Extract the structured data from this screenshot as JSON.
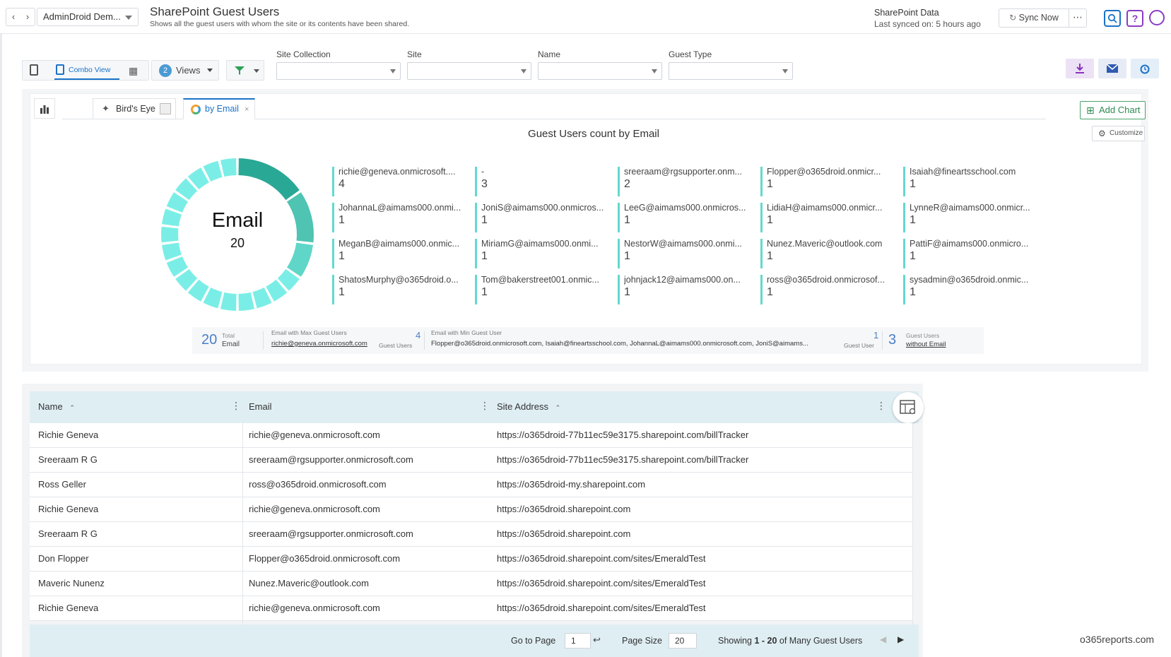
{
  "header": {
    "tenant": "AdminDroid Dem...",
    "title": "SharePoint Guest Users",
    "subtitle": "Shows all the guest users with whom the site or its contents have been shared.",
    "data_title": "SharePoint Data",
    "last_synced": "Last synced on: 5 hours ago",
    "sync_label": "Sync Now",
    "more_label": "⋯",
    "search_icon": "search-icon",
    "help_icon": "help-icon",
    "brand_color": "#1a73c8"
  },
  "toolbar": {
    "combo_view": "Combo View",
    "views_count": "2",
    "views_label": "Views"
  },
  "filters": {
    "site_collection": "Site Collection",
    "site": "Site",
    "name": "Name",
    "guest_type": "Guest Type"
  },
  "chart_tabs": {
    "birds_eye": "Bird's Eye",
    "by_email": "by Email",
    "add_chart": "Add Chart",
    "customize": "Customize"
  },
  "chart_data": {
    "type": "pie",
    "title": "Guest Users count by Email",
    "center_label": "Email",
    "center_value": "20",
    "categories": [
      "richie@geneva.onmicrosoft....",
      "-",
      "sreeraam@rgsupporter.onm...",
      "Flopper@o365droid.onmicr...",
      "Isaiah@fineartsschool.com",
      "JohannaL@aimams000.onmi...",
      "JoniS@aimams000.onmicros...",
      "LeeG@aimams000.onmicros...",
      "LidiaH@aimams000.onmicr...",
      "LynneR@aimams000.onmicr...",
      "MeganB@aimams000.onmic...",
      "MiriamG@aimams000.onmi...",
      "NestorW@aimams000.onmi...",
      "Nunez.Maveric@outlook.com",
      "PattiF@aimams000.onmicro...",
      "ShatosMurphy@o365droid.o...",
      "Tom@bakerstreet001.onmic...",
      "johnjack12@aimams000.on...",
      "ross@o365droid.onmicrosof...",
      "sysadmin@o365droid.onmic..."
    ],
    "values": [
      4,
      3,
      2,
      1,
      1,
      1,
      1,
      1,
      1,
      1,
      1,
      1,
      1,
      1,
      1,
      1,
      1,
      1,
      1,
      1
    ],
    "colors": [
      "#2aa896",
      "#4fc4b3",
      "#5fd6c8",
      "#6ee3d8",
      "#7aeee6"
    ]
  },
  "summary": {
    "total_value": "20",
    "total_label1": "Total",
    "total_label2": "Email",
    "max_label": "Email with Max Guest Users",
    "max_value": "richie@geneva.onmicrosoft.com",
    "max_count": "4",
    "max_unit": "Guest Users",
    "min_label": "Email with Min Guest User",
    "min_value": "Flopper@o365droid.onmicrosoft.com, Isaiah@fineartsschool.com, JohannaL@aimams000.onmicrosoft.com, JoniS@aimams...",
    "min_count": "1",
    "min_unit": "Guest User",
    "without_value": "3",
    "without_label1": "Guest Users",
    "without_label2": "without Email"
  },
  "grid": {
    "columns": [
      "Name",
      "Email",
      "Site Address"
    ],
    "rows": [
      [
        "Richie Geneva",
        "richie@geneva.onmicrosoft.com",
        "https://o365droid-77b11ec59e3175.sharepoint.com/billTracker"
      ],
      [
        "Sreeraam R G",
        "sreeraam@rgsupporter.onmicrosoft.com",
        "https://o365droid-77b11ec59e3175.sharepoint.com/billTracker"
      ],
      [
        "Ross Geller",
        "ross@o365droid.onmicrosoft.com",
        "https://o365droid-my.sharepoint.com"
      ],
      [
        "Richie Geneva",
        "richie@geneva.onmicrosoft.com",
        "https://o365droid.sharepoint.com"
      ],
      [
        "Sreeraam R G",
        "sreeraam@rgsupporter.onmicrosoft.com",
        "https://o365droid.sharepoint.com"
      ],
      [
        "Don Flopper",
        "Flopper@o365droid.onmicrosoft.com",
        "https://o365droid.sharepoint.com/sites/EmeraldTest"
      ],
      [
        "Maveric Nunenz",
        "Nunez.Maveric@outlook.com",
        "https://o365droid.sharepoint.com/sites/EmeraldTest"
      ],
      [
        "Richie Geneva",
        "richie@geneva.onmicrosoft.com",
        "https://o365droid.sharepoint.com/sites/EmeraldTest"
      ]
    ]
  },
  "pager": {
    "goto_label": "Go to Page",
    "goto_value": "1",
    "size_label": "Page Size",
    "size_value": "20",
    "showing_prefix": "Showing ",
    "showing_range": "1 - 20",
    "showing_suffix": " of Many Guest Users"
  },
  "watermark": "o365reports.com"
}
